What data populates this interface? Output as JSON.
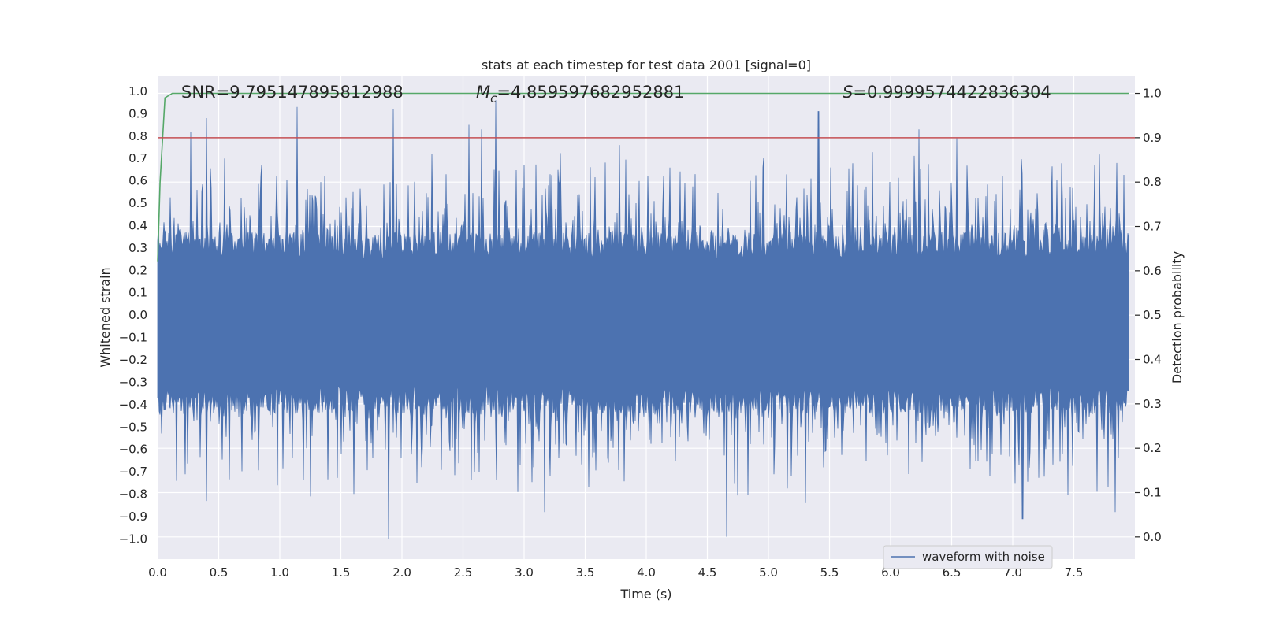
{
  "chart_data": {
    "type": "line",
    "title": "stats at each timestep for test data 2001 [signal=0]",
    "xlabel": "Time (s)",
    "ylabel_left": "Whitened strain",
    "ylabel_right": "Detection probability",
    "xlim": [
      0.0,
      8.0
    ],
    "ylim_left": [
      -1.09,
      1.07
    ],
    "ylim_right": [
      -0.05,
      1.04
    ],
    "x_ticks": [
      0.0,
      0.5,
      1.0,
      1.5,
      2.0,
      2.5,
      3.0,
      3.5,
      4.0,
      4.5,
      5.0,
      5.5,
      6.0,
      6.5,
      7.0,
      7.5
    ],
    "x_tick_labels": [
      "0.0",
      "0.5",
      "1.0",
      "1.5",
      "2.0",
      "2.5",
      "3.0",
      "3.5",
      "4.0",
      "4.5",
      "5.0",
      "5.5",
      "6.0",
      "6.5",
      "7.0",
      "7.5"
    ],
    "y_left_ticks": [
      -1.0,
      -0.9,
      -0.8,
      -0.7,
      -0.6,
      -0.5,
      -0.4,
      -0.3,
      -0.2,
      -0.1,
      0.0,
      0.1,
      0.2,
      0.3,
      0.4,
      0.5,
      0.6,
      0.7,
      0.8,
      0.9,
      1.0
    ],
    "y_left_tick_labels": [
      "−1.0",
      "−0.9",
      "−0.8",
      "−0.7",
      "−0.6",
      "−0.5",
      "−0.4",
      "−0.3",
      "−0.2",
      "−0.1",
      "0.0",
      "0.1",
      "0.2",
      "0.3",
      "0.4",
      "0.5",
      "0.6",
      "0.7",
      "0.8",
      "0.9",
      "1.0"
    ],
    "y_right_ticks": [
      0.0,
      0.1,
      0.2,
      0.3,
      0.4,
      0.5,
      0.6,
      0.7,
      0.8,
      0.9,
      1.0
    ],
    "y_right_tick_labels": [
      "0.0",
      "0.1",
      "0.2",
      "0.3",
      "0.4",
      "0.5",
      "0.6",
      "0.7",
      "0.8",
      "0.9",
      "1.0"
    ],
    "annotations": {
      "snr": "SNR=9.795147895812988",
      "mc": "=4.859597682952881",
      "mc_symbol": "M",
      "mc_sub": "c",
      "s": "=0.9999574422836304",
      "s_symbol": "S"
    },
    "waveform": {
      "name": "waveform with noise",
      "duration": 7.95,
      "core_amplitude": 0.25,
      "peaks_pos": [
        [
          0.27,
          0.82
        ],
        [
          0.4,
          0.88
        ],
        [
          0.55,
          0.7
        ],
        [
          0.85,
          0.67
        ],
        [
          1.14,
          0.93
        ],
        [
          1.6,
          0.55
        ],
        [
          1.93,
          0.92
        ],
        [
          2.55,
          0.85
        ],
        [
          2.65,
          0.83
        ],
        [
          2.77,
          0.96
        ],
        [
          3.2,
          0.58
        ],
        [
          3.78,
          0.76
        ],
        [
          4.4,
          0.63
        ],
        [
          4.85,
          0.6
        ],
        [
          5.41,
          0.91
        ],
        [
          6.23,
          0.83
        ],
        [
          6.54,
          0.79
        ],
        [
          7.4,
          0.64
        ],
        [
          7.85,
          0.68
        ]
      ],
      "peaks_neg": [
        [
          0.4,
          -0.83
        ],
        [
          0.98,
          -0.76
        ],
        [
          1.25,
          -0.81
        ],
        [
          1.89,
          -1.0
        ],
        [
          2.95,
          -0.79
        ],
        [
          3.17,
          -0.88
        ],
        [
          3.53,
          -0.77
        ],
        [
          4.66,
          -0.99
        ],
        [
          5.45,
          -0.68
        ],
        [
          6.15,
          -0.71
        ],
        [
          7.02,
          -0.75
        ],
        [
          7.08,
          -0.91
        ],
        [
          7.78,
          -0.77
        ],
        [
          7.84,
          -0.88
        ]
      ]
    },
    "detection_probability": {
      "name": "detection probability",
      "x": [
        0.0,
        0.02,
        0.06,
        0.12,
        0.2,
        1.0,
        3.0,
        5.0,
        7.0,
        7.95
      ],
      "y": [
        0.62,
        0.8,
        0.99,
        1.0,
        1.0,
        1.0,
        1.0,
        1.0,
        1.0,
        1.0
      ]
    },
    "threshold": {
      "value": 0.9
    },
    "legend": {
      "label": "waveform with noise",
      "location": "lower-right"
    },
    "colors": {
      "waveform": "#4c72b0",
      "probability": "#55a868",
      "threshold": "#c44e52",
      "axes_bg": "#eaeaf2",
      "grid": "#ffffff"
    }
  }
}
